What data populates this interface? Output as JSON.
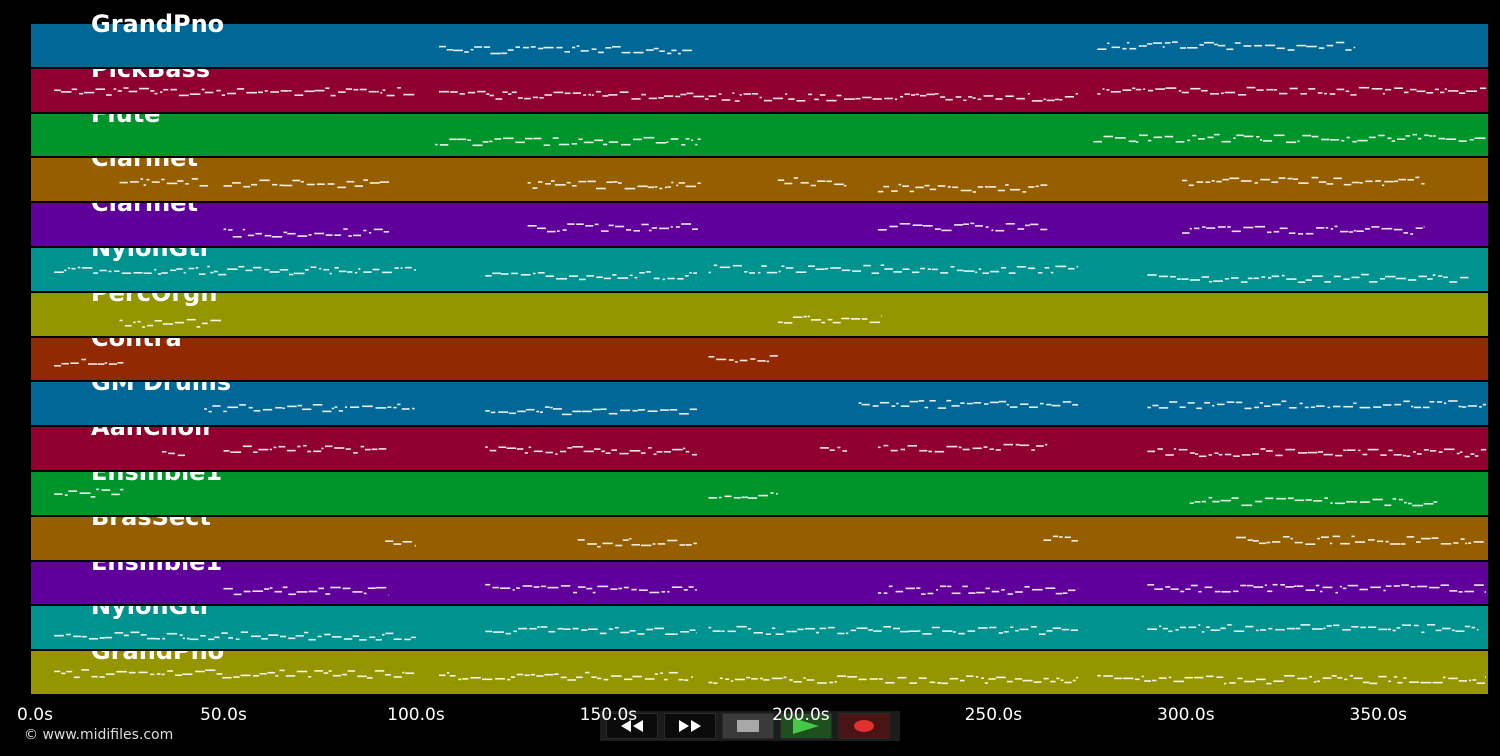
{
  "app": {
    "copyright": "© www.midifiles.com"
  },
  "timeline": {
    "ticks": [
      "0.0s",
      "50.0s",
      "100.0s",
      "150.0s",
      "200.0s",
      "250.0s",
      "300.0s",
      "350.0s"
    ],
    "tick_seconds": [
      0,
      50,
      100,
      150,
      200,
      250,
      300,
      350
    ],
    "end_seconds": 378.5
  },
  "tracks": [
    {
      "name": "GrandPno",
      "color": "#006797",
      "segments": [
        [
          106,
          172
        ],
        [
          277,
          344
        ]
      ]
    },
    {
      "name": "PickBass",
      "color": "#8f0030",
      "segments": [
        [
          6,
          100
        ],
        [
          106,
          176
        ],
        [
          176,
          272
        ],
        [
          277,
          378
        ]
      ]
    },
    {
      "name": "Flute",
      "color": "#00952b",
      "segments": [
        [
          105,
          174
        ],
        [
          276,
          378
        ]
      ]
    },
    {
      "name": "Clarinet",
      "color": "#955f00",
      "segments": [
        [
          23,
          46
        ],
        [
          50,
          93
        ],
        [
          129,
          174
        ],
        [
          194,
          212
        ],
        [
          220,
          264
        ],
        [
          299,
          362
        ]
      ]
    },
    {
      "name": "Clarinet",
      "color": "#60009a",
      "segments": [
        [
          50,
          93
        ],
        [
          129,
          174
        ],
        [
          220,
          264
        ],
        [
          299,
          362
        ]
      ]
    },
    {
      "name": "NylonGtr",
      "color": "#00928f",
      "segments": [
        [
          6,
          100
        ],
        [
          118,
          173
        ],
        [
          176,
          272
        ],
        [
          290,
          374
        ]
      ]
    },
    {
      "name": "PercOrgn",
      "color": "#959500",
      "segments": [
        [
          23,
          50
        ],
        [
          194,
          221
        ]
      ]
    },
    {
      "name": "Contra",
      "color": "#922900",
      "segments": [
        [
          6,
          24
        ],
        [
          176,
          194
        ]
      ]
    },
    {
      "name": "GM Drums",
      "color": "#006797",
      "segments": [
        [
          45,
          100
        ],
        [
          118,
          173
        ],
        [
          215,
          272
        ],
        [
          290,
          378
        ]
      ]
    },
    {
      "name": "AahChoir",
      "color": "#8f0030",
      "segments": [
        [
          34,
          40
        ],
        [
          50,
          93
        ],
        [
          118,
          173
        ],
        [
          205,
          212
        ],
        [
          220,
          264
        ],
        [
          290,
          378
        ]
      ]
    },
    {
      "name": "Ensmble1",
      "color": "#00952b",
      "segments": [
        [
          6,
          24
        ],
        [
          176,
          194
        ],
        [
          301,
          366
        ]
      ]
    },
    {
      "name": "BrasSect",
      "color": "#955f00",
      "segments": [
        [
          92,
          100
        ],
        [
          142,
          173
        ],
        [
          263,
          272
        ],
        [
          313,
          378
        ]
      ]
    },
    {
      "name": "Ensmble1",
      "color": "#60009a",
      "segments": [
        [
          50,
          93
        ],
        [
          118,
          173
        ],
        [
          220,
          272
        ],
        [
          290,
          378
        ]
      ]
    },
    {
      "name": "NylonGtr",
      "color": "#00928f",
      "segments": [
        [
          6,
          100
        ],
        [
          118,
          173
        ],
        [
          176,
          272
        ],
        [
          290,
          376
        ]
      ]
    },
    {
      "name": "GrandPno",
      "color": "#959500",
      "segments": [
        [
          6,
          100
        ],
        [
          106,
          172
        ],
        [
          176,
          272
        ],
        [
          277,
          378
        ]
      ]
    }
  ],
  "transport": {
    "rewind_icon": "rewind-icon",
    "forward_icon": "fast-forward-icon",
    "stop_icon": "stop-icon",
    "play_icon": "play-icon",
    "record_icon": "record-icon",
    "play_color": "#48c848",
    "record_color": "#e03030",
    "stop_color": "#a8a8a8"
  },
  "qr_code": {
    "icon": "qr-code-icon",
    "background": "#f6e32a",
    "foreground": "#4c0b5e"
  }
}
